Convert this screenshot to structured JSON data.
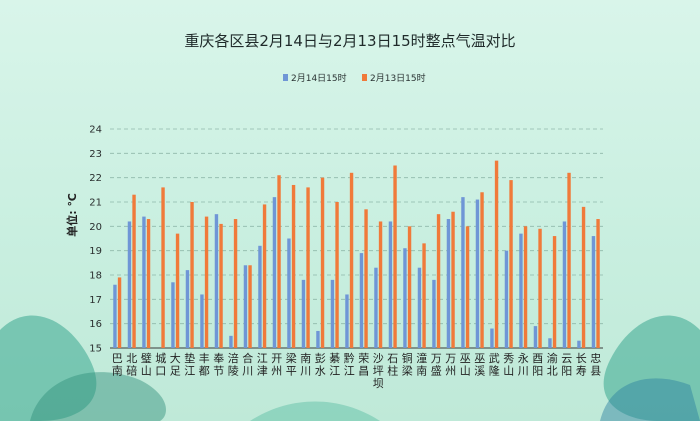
{
  "chart_data": {
    "type": "bar",
    "title": "重庆各区县2月14日与2月13日15时整点气温对比",
    "ylabel": "单位: ℃",
    "xlabel": "",
    "ylim": [
      15,
      24
    ],
    "yticks": [
      15,
      16,
      17,
      18,
      19,
      20,
      21,
      22,
      23,
      24
    ],
    "grid": true,
    "legend": "top-center",
    "categories": [
      "巴南",
      "北碚",
      "璧山",
      "城口",
      "大足",
      "垫江",
      "丰都",
      "奉节",
      "涪陵",
      "合川",
      "江津",
      "开州",
      "梁平",
      "南川",
      "彭水",
      "綦江",
      "黔江",
      "荣昌",
      "沙坪坝",
      "石柱",
      "铜梁",
      "潼南",
      "万盛",
      "万州",
      "巫山",
      "巫溪",
      "武隆",
      "秀山",
      "永川",
      "酉阳",
      "渝北",
      "云阳",
      "长寿",
      "忠县"
    ],
    "series": [
      {
        "name": "2月14日15时",
        "color": "#6f96d6",
        "values": [
          17.6,
          20.2,
          20.4,
          15.0,
          17.7,
          18.2,
          17.2,
          20.5,
          15.5,
          18.4,
          19.2,
          21.2,
          19.5,
          17.8,
          15.7,
          17.8,
          17.2,
          18.9,
          18.3,
          20.2,
          19.1,
          18.3,
          17.8,
          20.3,
          21.2,
          21.1,
          15.8,
          19.0,
          19.7,
          15.9,
          15.4,
          20.2,
          15.3,
          19.6
        ]
      },
      {
        "name": "2月13日15时",
        "color": "#f07a3a",
        "values": [
          17.9,
          21.3,
          20.3,
          21.6,
          19.7,
          21.0,
          20.4,
          20.1,
          20.3,
          18.4,
          20.9,
          22.1,
          21.7,
          21.6,
          22.0,
          21.0,
          22.2,
          20.7,
          20.2,
          22.5,
          20.0,
          19.3,
          20.5,
          20.6,
          20.0,
          21.4,
          22.7,
          21.9,
          20.0,
          19.9,
          19.6,
          22.2,
          20.8,
          20.3
        ]
      }
    ]
  }
}
